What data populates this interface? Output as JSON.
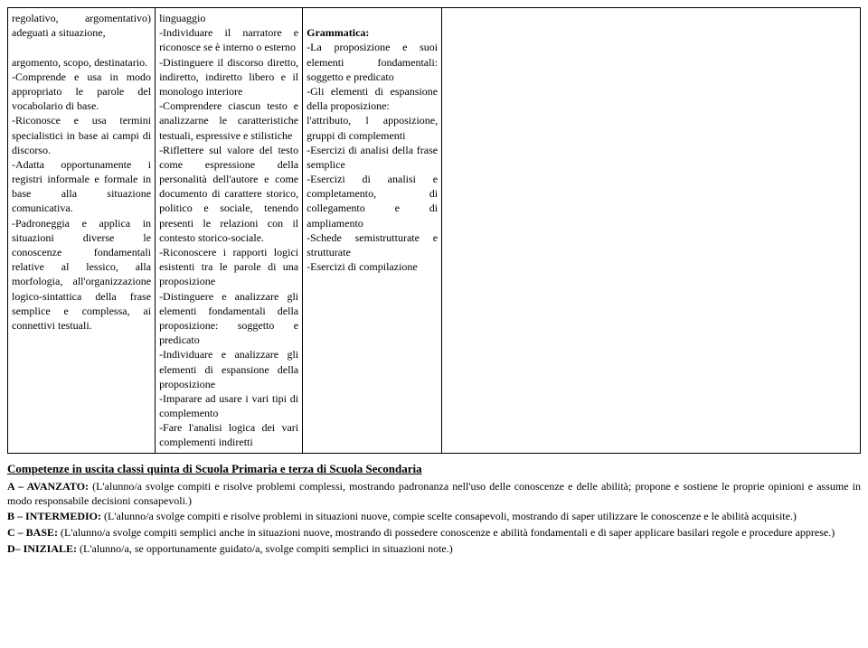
{
  "table": {
    "col1": "regolativo, argomentativo) adeguati a situazione,\n\nargomento, scopo, destinatario.\n-Comprende e usa in modo appropriato le parole del vocabolario di base.\n-Riconosce e usa termini specialistici in base ai campi di discorso.\n-Adatta opportunamente i registri informale e formale in base alla situazione comunicativa.\n-Padroneggia e applica in situazioni diverse le conoscenze fondamentali relative al lessico, alla morfologia, all'organizzazione logico-sintattica della frase semplice e complessa, ai connettivi testuali.",
    "col2": "linguaggio\n-Individuare il narratore e riconosce se è interno o esterno\n-Distinguere il discorso diretto, indiretto, indiretto libero e il monologo interiore\n-Comprendere ciascun testo e analizzarne le caratteristiche testuali, espressive e stilistiche\n-Riflettere sul valore del testo come espressione della personalità dell'autore e come documento di carattere storico, politico e sociale, tenendo presenti le relazioni con il contesto storico-sociale.\n-Riconoscere i rapporti logici esistenti tra le parole di una proposizione\n-Distinguere e analizzare gli elementi fondamentali della proposizione: soggetto e predicato\n-Individuare e analizzare gli elementi di espansione della proposizione\n-Imparare ad usare i vari tipi di complemento\n-Fare l'analisi logica dei vari complementi indiretti",
    "col3": "\nGrammatica:\n-La proposizione e suoi elementi fondamentali: soggetto e predicato\n-Gli elementi di espansione della proposizione:\nl'attributo, l apposizione, gruppi di complementi\n-Esercizi di analisi della frase semplice\n-Esercizi di analisi e completamento, di collegamento e di ampliamento\n-Schede semistrutturate e strutturate\n-Esercizi di compilazione",
    "col4": ""
  },
  "section_title": "Competenze in uscita classi quinta di Scuola Primaria e terza di Scuola Secondaria",
  "levels": {
    "a_label": "A – AVANZATO:",
    "a_text": " (L'alunno/a svolge compiti e risolve problemi complessi, mostrando padronanza nell'uso delle conoscenze e delle abilità; propone e sostiene le proprie opinioni e assume in modo responsabile decisioni consapevoli.)",
    "b_label": "B – INTERMEDIO:",
    "b_text": " (L'alunno/a svolge compiti e risolve problemi in situazioni nuove, compie scelte consapevoli, mostrando di saper utilizzare le conoscenze e le abilità acquisite.)",
    "c_label": "C – BASE:",
    "c_text": " (L'alunno/a svolge compiti semplici anche in situazioni nuove, mostrando di possedere conoscenze e abilità fondamentali e di saper applicare basilari regole e procedure apprese.)",
    "d_label": "D– INIZIALE:",
    "d_text": " (L'alunno/a, se opportunamente guidato/a, svolge compiti semplici in situazioni note.)"
  }
}
